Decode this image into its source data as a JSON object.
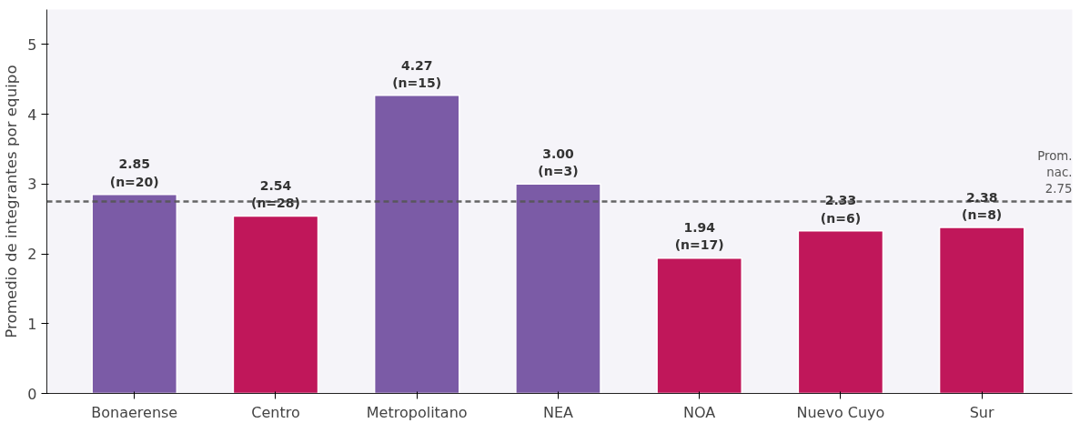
{
  "chart_data": {
    "type": "bar",
    "ylabel": "Promedio de integrantes por equipo",
    "categories": [
      "Bonaerense",
      "Centro",
      "Metropolitano",
      "NEA",
      "NOA",
      "Nuevo Cuyo",
      "Sur"
    ],
    "values": [
      2.85,
      2.54,
      4.27,
      3.0,
      1.94,
      2.33,
      2.38
    ],
    "colors": [
      "#7b5ba6",
      "#c0175a",
      "#7b5ba6",
      "#7b5ba6",
      "#c0175a",
      "#c0175a",
      "#c0175a"
    ],
    "value_labels": [
      "2.85\n(n=20)",
      "2.54\n(n=28)",
      "4.27\n(n=15)",
      "3.00\n(n=3)",
      "1.94\n(n=17)",
      "2.33\n(n=6)",
      "2.38\n(n=8)"
    ],
    "ylim": [
      0,
      5.5
    ],
    "yticks": [
      0,
      1,
      2,
      3,
      4,
      5
    ],
    "ref_lines": [
      {
        "axis": "y",
        "value": 2.75,
        "label": "Prom.\nnac.\n2.75",
        "color": "#555555",
        "line_style": "dashed"
      }
    ],
    "grid": false
  }
}
